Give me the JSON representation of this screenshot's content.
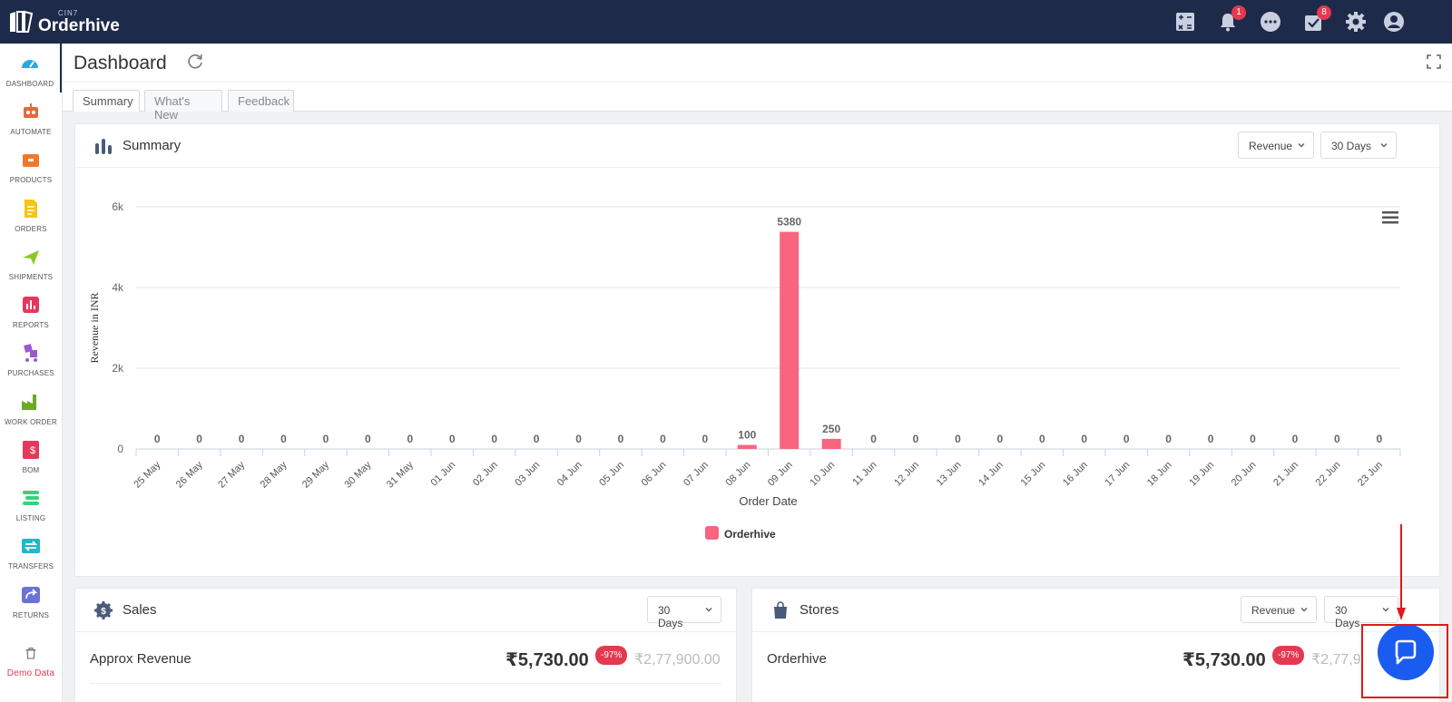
{
  "app": {
    "brand_small": "CIN7",
    "brand_name": "Orderhive"
  },
  "topbar": {
    "icons": [
      "calculator-icon",
      "bell-icon",
      "chat-icon",
      "tasks-icon",
      "gear-icon",
      "user-icon"
    ],
    "notifications_count": "1",
    "tasks_count": "8"
  },
  "sidebar": {
    "items": [
      {
        "label": "DASHBOARD",
        "icon": "dashboard-icon",
        "color": "#29a8e0"
      },
      {
        "label": "AUTOMATE",
        "icon": "robot-icon",
        "color": "#e06a3a"
      },
      {
        "label": "PRODUCTS",
        "icon": "box-icon",
        "color": "#f07a2a"
      },
      {
        "label": "ORDERS",
        "icon": "document-icon",
        "color": "#f5c518"
      },
      {
        "label": "SHIPMENTS",
        "icon": "plane-icon",
        "color": "#8ac926"
      },
      {
        "label": "REPORTS",
        "icon": "report-icon",
        "color": "#e5395b"
      },
      {
        "label": "PURCHASES",
        "icon": "cart-icon",
        "color": "#9b59d0"
      },
      {
        "label": "WORK ORDER",
        "icon": "factory-icon",
        "color": "#6aaa24"
      },
      {
        "label": "BOM",
        "icon": "bom-icon",
        "color": "#e5395b"
      },
      {
        "label": "LISTING",
        "icon": "listing-icon",
        "color": "#3ad07a"
      },
      {
        "label": "TRANSFERS",
        "icon": "transfer-icon",
        "color": "#22b7c7"
      },
      {
        "label": "RETURNS",
        "icon": "return-icon",
        "color": "#6a72d8"
      },
      {
        "label": "Demo Data",
        "icon": "trash-icon",
        "color": "#666666"
      }
    ]
  },
  "header": {
    "title": "Dashboard"
  },
  "tabs": [
    {
      "label": "Summary",
      "active": true
    },
    {
      "label": "What's New",
      "active": false
    },
    {
      "label": "Feedback",
      "active": false
    }
  ],
  "summary_card": {
    "title": "Summary",
    "metric_dropdown": "Revenue",
    "range_dropdown": "30 Days"
  },
  "chart_data": {
    "type": "bar",
    "xlabel": "Order Date",
    "ylabel": "Revenue in INR",
    "ylim": [
      0,
      6000
    ],
    "yticks": [
      "0",
      "2k",
      "4k",
      "6k"
    ],
    "categories": [
      "25 May",
      "26 May",
      "27 May",
      "28 May",
      "29 May",
      "30 May",
      "31 May",
      "01 Jun",
      "02 Jun",
      "03 Jun",
      "04 Jun",
      "05 Jun",
      "06 Jun",
      "07 Jun",
      "08 Jun",
      "09 Jun",
      "10 Jun",
      "11 Jun",
      "12 Jun",
      "13 Jun",
      "14 Jun",
      "15 Jun",
      "16 Jun",
      "17 Jun",
      "18 Jun",
      "19 Jun",
      "20 Jun",
      "21 Jun",
      "22 Jun",
      "23 Jun"
    ],
    "series": [
      {
        "name": "Orderhive",
        "color": "#f7657f",
        "values": [
          0,
          0,
          0,
          0,
          0,
          0,
          0,
          0,
          0,
          0,
          0,
          0,
          0,
          0,
          100,
          5380,
          250,
          0,
          0,
          0,
          0,
          0,
          0,
          0,
          0,
          0,
          0,
          0,
          0,
          0
        ]
      }
    ],
    "legend": "bottom-center",
    "grid": true
  },
  "sales_card": {
    "title": "Sales",
    "range_dropdown": "30 Days",
    "row_label": "Approx Revenue",
    "amount": "₹5,730.00",
    "change": "-97%",
    "previous": "₹2,77,900.00"
  },
  "stores_card": {
    "title": "Stores",
    "metric_dropdown": "Revenue",
    "range_dropdown": "30 Days",
    "row_label": "Orderhive",
    "amount": "₹5,730.00",
    "change": "-97%",
    "previous": "₹2,77,9"
  },
  "colors": {
    "topbar": "#1e2a4a",
    "accent_red": "#e53950",
    "bar": "#f7657f",
    "chat_button": "#1b5cf0",
    "annotation": "#e0191b"
  }
}
